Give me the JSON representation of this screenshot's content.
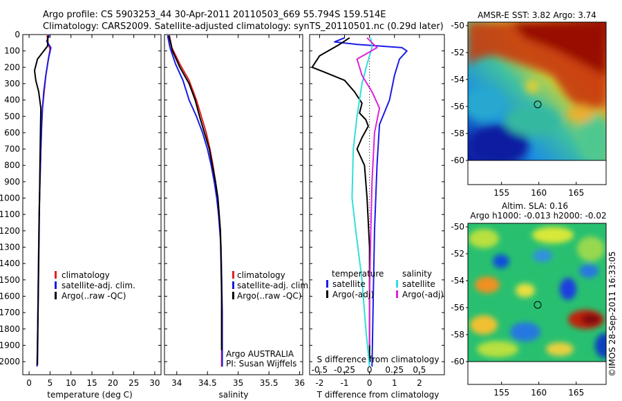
{
  "figure": {
    "title_line1": "Argo profile: CS 5903253_44 30-Apr-2011 20110503_669 55.794S 159.514E",
    "title_line2": "Climatology: CARS2009. Satellite-adjusted climatology: synTS_20110501.nc (0.29d later)",
    "credit": "©IMOS 28-Sep-2011 16:33:05",
    "argo_info_line1": "Argo AUSTRALIA",
    "argo_info_line2": "PI: Susan Wijffels"
  },
  "colors": {
    "climatology": "#e02020",
    "satellite": "#1a1ae6",
    "argo": "#000000",
    "salinity_satellite": "#33dddd",
    "salinity_argo": "#dd22dd"
  },
  "legends": {
    "temp": [
      "climatology",
      "satellite-adj. clim.",
      "Argo(..raw -QC)"
    ],
    "sal": [
      "climatology",
      "satellite-adj. clim.",
      "Argo(..raw -QC)"
    ],
    "diff_temperature_title": "temperature",
    "diff_salinity_title": "salinity",
    "diff_temperature": [
      "satellite",
      "Argo(-adj)"
    ],
    "diff_salinity": [
      "satellite",
      "Argo(-adj)"
    ]
  },
  "chart_data": [
    {
      "type": "line",
      "name": "temperature",
      "xlabel": "temperature (deg C)",
      "ylabel": "",
      "xlim": [
        -1.5,
        31.5
      ],
      "ylim": [
        2080,
        0
      ],
      "xticks": [
        0,
        5,
        10,
        15,
        20,
        25,
        30
      ],
      "xtick_labels": [
        "0",
        "5",
        "10",
        "15",
        "20",
        "25",
        "30"
      ],
      "yticks": [
        0,
        100,
        200,
        300,
        400,
        500,
        600,
        700,
        800,
        900,
        1000,
        1100,
        1200,
        1300,
        1400,
        1500,
        1600,
        1700,
        1800,
        1900,
        2000
      ],
      "series": [
        {
          "name": "climatology",
          "color_key": "climatology",
          "points": [
            [
              4.3,
              5
            ],
            [
              4.5,
              50
            ],
            [
              5.0,
              90
            ],
            [
              4.6,
              150
            ],
            [
              4.0,
              250
            ],
            [
              3.6,
              350
            ],
            [
              3.2,
              450
            ],
            [
              3.0,
              550
            ],
            [
              2.8,
              700
            ],
            [
              2.6,
              900
            ],
            [
              2.4,
              1100
            ],
            [
              2.3,
              1300
            ],
            [
              2.2,
              1500
            ],
            [
              2.1,
              1700
            ],
            [
              2.0,
              1900
            ],
            [
              1.9,
              2030
            ]
          ]
        },
        {
          "name": "satellite-adj. clim.",
          "color_key": "satellite",
          "points": [
            [
              4.8,
              5
            ],
            [
              4.2,
              40
            ],
            [
              5.2,
              80
            ],
            [
              4.6,
              150
            ],
            [
              4.0,
              250
            ],
            [
              3.5,
              350
            ],
            [
              3.2,
              450
            ],
            [
              3.0,
              550
            ],
            [
              2.8,
              700
            ],
            [
              2.6,
              900
            ],
            [
              2.4,
              1100
            ],
            [
              2.3,
              1300
            ],
            [
              2.2,
              1500
            ],
            [
              2.1,
              1700
            ],
            [
              2.0,
              1900
            ],
            [
              1.9,
              2030
            ]
          ]
        },
        {
          "name": "Argo(..raw -QC)",
          "color_key": "argo",
          "points": [
            [
              4.5,
              5
            ],
            [
              4.4,
              70
            ],
            [
              2.0,
              150
            ],
            [
              1.3,
              220
            ],
            [
              1.6,
              280
            ],
            [
              2.3,
              350
            ],
            [
              2.8,
              450
            ],
            [
              2.7,
              600
            ],
            [
              2.6,
              800
            ],
            [
              2.5,
              1000
            ],
            [
              2.4,
              1200
            ],
            [
              2.3,
              1400
            ],
            [
              2.2,
              1600
            ],
            [
              2.1,
              1800
            ],
            [
              2.0,
              2020
            ]
          ]
        }
      ]
    },
    {
      "type": "line",
      "name": "salinity",
      "xlabel": "salinity",
      "ylabel": "",
      "xlim": [
        33.8,
        36.05
      ],
      "ylim": [
        2080,
        0
      ],
      "xticks": [
        34,
        34.5,
        35,
        35.5,
        36
      ],
      "xtick_labels": [
        "34",
        "34.5",
        "35",
        "35.5",
        "36"
      ],
      "series": [
        {
          "name": "climatology",
          "color_key": "climatology",
          "points": [
            [
              33.88,
              5
            ],
            [
              33.92,
              80
            ],
            [
              34.05,
              180
            ],
            [
              34.2,
              280
            ],
            [
              34.32,
              400
            ],
            [
              34.4,
              500
            ],
            [
              34.48,
              600
            ],
            [
              34.54,
              700
            ],
            [
              34.59,
              800
            ],
            [
              34.63,
              900
            ],
            [
              34.67,
              1000
            ],
            [
              34.69,
              1100
            ],
            [
              34.71,
              1200
            ],
            [
              34.72,
              1300
            ],
            [
              34.73,
              1500
            ],
            [
              34.73,
              1700
            ],
            [
              34.73,
              2030
            ]
          ]
        },
        {
          "name": "satellite-adj. clim.",
          "color_key": "satellite",
          "points": [
            [
              33.85,
              5
            ],
            [
              33.89,
              80
            ],
            [
              33.98,
              180
            ],
            [
              34.1,
              280
            ],
            [
              34.2,
              400
            ],
            [
              34.32,
              500
            ],
            [
              34.42,
              600
            ],
            [
              34.5,
              700
            ],
            [
              34.56,
              800
            ],
            [
              34.61,
              900
            ],
            [
              34.65,
              1000
            ],
            [
              34.68,
              1100
            ],
            [
              34.7,
              1200
            ],
            [
              34.72,
              1300
            ],
            [
              34.73,
              1500
            ],
            [
              34.74,
              1700
            ],
            [
              34.74,
              2030
            ]
          ]
        },
        {
          "name": "Argo(..raw -QC)",
          "color_key": "argo",
          "points": [
            [
              33.87,
              5
            ],
            [
              33.93,
              100
            ],
            [
              34.05,
              200
            ],
            [
              34.2,
              300
            ],
            [
              34.3,
              400
            ],
            [
              34.37,
              500
            ],
            [
              34.45,
              600
            ],
            [
              34.53,
              700
            ],
            [
              34.58,
              800
            ],
            [
              34.63,
              900
            ],
            [
              34.67,
              1000
            ],
            [
              34.69,
              1100
            ],
            [
              34.71,
              1200
            ],
            [
              34.72,
              1400
            ],
            [
              34.73,
              1600
            ],
            [
              34.73,
              1800
            ],
            [
              34.73,
              1930
            ]
          ]
        }
      ]
    },
    {
      "type": "line",
      "name": "difference from climatology",
      "xlabel": "T difference from climatology",
      "top_label": "S difference from climatology",
      "ylabel": "",
      "xlim": [
        -2.4,
        3.0
      ],
      "ylim": [
        2080,
        0
      ],
      "xticks": [
        -2,
        -1,
        0,
        1,
        2
      ],
      "xtick_labels": [
        "-2",
        "-1",
        "0",
        "1",
        "2"
      ],
      "top_ticks": [
        -0.5,
        -0.25,
        0,
        0.25,
        0.5
      ],
      "top_tick_labels": [
        "-0.5",
        "-0.25",
        "0",
        "0.25",
        "0.5"
      ],
      "series": [
        {
          "name": "temperature satellite",
          "color_key": "satellite",
          "points": [
            [
              -1.0,
              20
            ],
            [
              -1.4,
              45
            ],
            [
              -0.5,
              60
            ],
            [
              1.3,
              80
            ],
            [
              1.5,
              100
            ],
            [
              1.2,
              150
            ],
            [
              1.0,
              250
            ],
            [
              0.8,
              400
            ],
            [
              0.4,
              550
            ],
            [
              0.3,
              800
            ],
            [
              0.2,
              1200
            ],
            [
              0.15,
              1600
            ],
            [
              0.1,
              2030
            ]
          ]
        },
        {
          "name": "temperature Argo(-adj)",
          "color_key": "argo",
          "points": [
            [
              -0.8,
              20
            ],
            [
              -1.2,
              60
            ],
            [
              -2.0,
              130
            ],
            [
              -2.3,
              200
            ],
            [
              -1.8,
              230
            ],
            [
              -1.0,
              280
            ],
            [
              -0.6,
              350
            ],
            [
              -0.3,
              420
            ],
            [
              -0.4,
              480
            ],
            [
              -0.15,
              520
            ],
            [
              -0.05,
              560
            ],
            [
              -0.3,
              630
            ],
            [
              -0.5,
              700
            ],
            [
              -0.2,
              800
            ],
            [
              -0.1,
              1000
            ],
            [
              0.0,
              1300
            ],
            [
              0.0,
              1600
            ],
            [
              0.0,
              2000
            ]
          ]
        },
        {
          "name": "salinity satellite",
          "color_key": "salinity_satellite",
          "points": [
            [
              0.05,
              20
            ],
            [
              0.1,
              80
            ],
            [
              -0.1,
              180
            ],
            [
              -0.3,
              300
            ],
            [
              -0.5,
              500
            ],
            [
              -0.65,
              700
            ],
            [
              -0.7,
              1000
            ],
            [
              -0.55,
              1200
            ],
            [
              -0.3,
              1500
            ],
            [
              -0.15,
              1800
            ],
            [
              0.0,
              2030
            ]
          ]
        },
        {
          "name": "salinity Argo(-adj)",
          "color_key": "salinity_argo",
          "points": [
            [
              -0.1,
              20
            ],
            [
              0.3,
              80
            ],
            [
              -0.5,
              150
            ],
            [
              -0.3,
              250
            ],
            [
              0.1,
              350
            ],
            [
              0.4,
              450
            ],
            [
              0.2,
              600
            ],
            [
              0.1,
              900
            ],
            [
              0.05,
              1200
            ],
            [
              0.0,
              1600
            ],
            [
              0.0,
              1900
            ]
          ]
        }
      ]
    },
    {
      "type": "heatmap",
      "name": "AMSR-E SST",
      "title": "AMSR-E SST: 3.82  Argo: 3.74",
      "xlim": [
        150.5,
        169
      ],
      "ylim": [
        -60,
        -50
      ],
      "xticks": [
        155,
        160,
        165
      ],
      "xtick_labels": [
        "155",
        "160",
        "165"
      ],
      "yticks": [
        -50,
        -52,
        -54,
        -56,
        -58,
        -60
      ],
      "ytick_labels": [
        "-50",
        "-52",
        "-54",
        "-56",
        "-58",
        "-60"
      ],
      "argo_position": [
        159.514,
        -55.794
      ]
    },
    {
      "type": "heatmap",
      "name": "Altim. SLA",
      "title_line1": "Altim. SLA: 0.16",
      "title_line2": "Argo h1000: -0.013 h2000: -0.02",
      "xlim": [
        150.5,
        169
      ],
      "ylim": [
        -60,
        -50
      ],
      "xticks": [
        155,
        160,
        165
      ],
      "xtick_labels": [
        "155",
        "160",
        "165"
      ],
      "yticks": [
        -50,
        -52,
        -54,
        -56,
        -58,
        -60
      ],
      "ytick_labels": [
        "-50",
        "-52",
        "-54",
        "-56",
        "-58",
        "-60"
      ],
      "argo_position": [
        159.514,
        -55.794
      ]
    }
  ]
}
